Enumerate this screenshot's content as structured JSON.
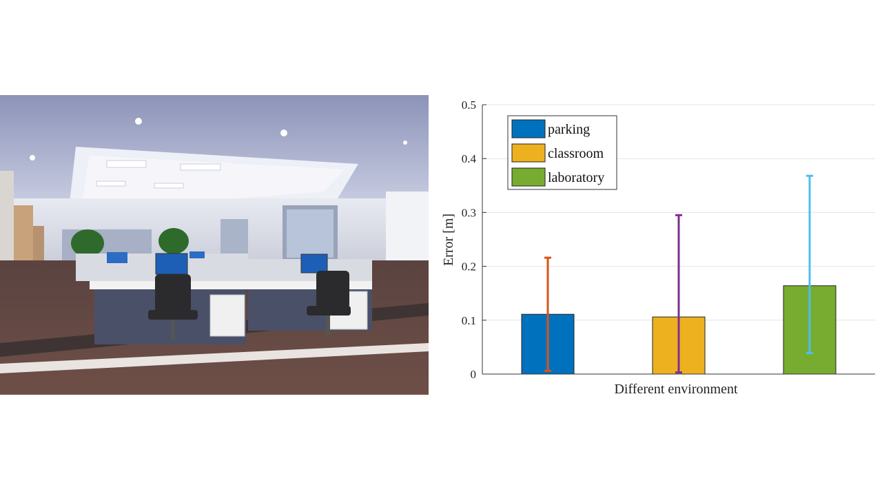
{
  "chart_data": {
    "type": "bar",
    "categories": [
      "parking",
      "classroom",
      "laboratory"
    ],
    "values": [
      0.111,
      0.106,
      0.164
    ],
    "error_low": [
      0.006,
      0.003,
      0.039
    ],
    "error_high": [
      0.216,
      0.295,
      0.368
    ],
    "bar_colors": [
      "#0072BD",
      "#EDB120",
      "#77AC30"
    ],
    "error_colors": [
      "#D95319",
      "#7E2F8E",
      "#4DBEEE"
    ],
    "title": "",
    "xlabel": "Different environment",
    "ylabel": "Error [m]",
    "ylim": [
      0,
      0.5
    ],
    "yticks": [
      "0",
      "0.1",
      "0.2",
      "0.3",
      "0.4",
      "0.5"
    ],
    "grid": true,
    "legend": {
      "placement": "top-left",
      "entries": [
        "parking",
        "classroom",
        "laboratory"
      ]
    }
  }
}
